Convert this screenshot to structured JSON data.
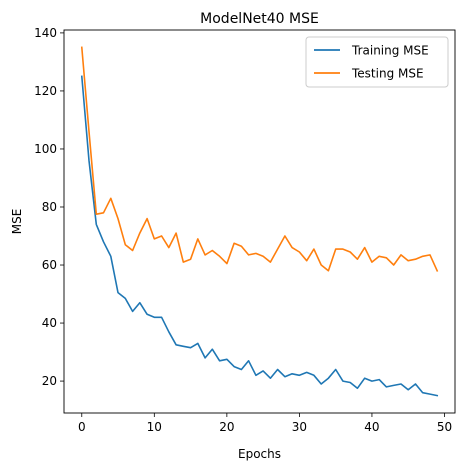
{
  "chart_data": {
    "type": "line",
    "title": "ModelNet40 MSE",
    "xlabel": "Epochs",
    "ylabel": "MSE",
    "xlim": [
      -2.45,
      51.45
    ],
    "ylim": [
      9,
      141
    ],
    "xticks": [
      0,
      10,
      20,
      30,
      40,
      50
    ],
    "yticks": [
      20,
      40,
      60,
      80,
      100,
      120,
      140
    ],
    "grid": false,
    "legend_position": "top-right",
    "series": [
      {
        "name": "Training MSE",
        "color": "#1f77b4",
        "x": [
          0,
          1,
          2,
          3,
          4,
          5,
          6,
          7,
          8,
          9,
          10,
          11,
          12,
          13,
          14,
          15,
          16,
          17,
          18,
          19,
          20,
          21,
          22,
          23,
          24,
          25,
          26,
          27,
          28,
          29,
          30,
          31,
          32,
          33,
          34,
          35,
          36,
          37,
          38,
          39,
          40,
          41,
          42,
          43,
          44,
          45,
          46,
          47,
          48,
          49
        ],
        "values": [
          125,
          96,
          74,
          68,
          63,
          50.5,
          48.5,
          44,
          47,
          43,
          42,
          42,
          37,
          32.5,
          32,
          31.5,
          33,
          28,
          31,
          27,
          27.5,
          25,
          24,
          27,
          22,
          23.5,
          21,
          24,
          21.5,
          22.5,
          22,
          23,
          22,
          19,
          21,
          24,
          20,
          19.5,
          17.5,
          21,
          20,
          20.5,
          18,
          18.5,
          19,
          17,
          19,
          16,
          15.5,
          15
        ]
      },
      {
        "name": "Testing MSE",
        "color": "#ff7f0e",
        "x": [
          0,
          1,
          2,
          3,
          4,
          5,
          6,
          7,
          8,
          9,
          10,
          11,
          12,
          13,
          14,
          15,
          16,
          17,
          18,
          19,
          20,
          21,
          22,
          23,
          24,
          25,
          26,
          27,
          28,
          29,
          30,
          31,
          32,
          33,
          34,
          35,
          36,
          37,
          38,
          39,
          40,
          41,
          42,
          43,
          44,
          45,
          46,
          47,
          48,
          49
        ],
        "values": [
          135,
          106,
          77.5,
          78,
          83,
          76,
          67,
          65,
          71,
          76,
          69,
          70,
          66,
          71,
          61,
          62,
          69,
          63.5,
          65,
          63,
          60.5,
          67.5,
          66.5,
          63.5,
          64,
          63,
          61,
          65.5,
          70,
          66,
          64.5,
          61.5,
          65.5,
          60,
          58,
          65.5,
          65.5,
          64.5,
          62,
          66,
          61,
          63,
          62.5,
          60,
          63.5,
          61.5,
          62,
          63,
          63.5,
          58
        ]
      }
    ]
  }
}
